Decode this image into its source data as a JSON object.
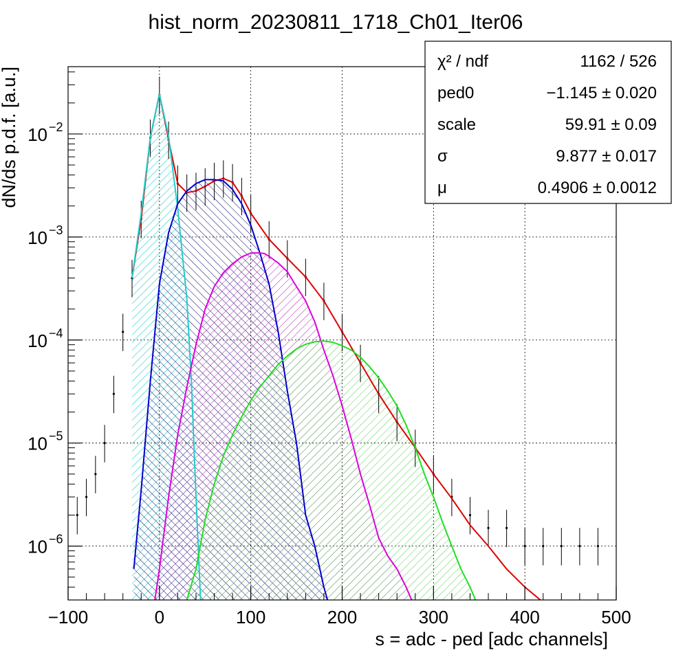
{
  "chart_data": {
    "type": "line",
    "title": "hist_norm_20230811_1718_Ch01_Iter06",
    "xlabel": "s = adc - ped [adc channels]",
    "ylabel": "dN/ds p.d.f. [a.u.]",
    "xlim": [
      -100,
      500
    ],
    "ylim": [
      3e-07,
      0.045
    ],
    "yscale": "log",
    "grid": true,
    "x_ticks": [
      -100,
      0,
      100,
      200,
      300,
      400,
      500
    ],
    "x_tick_labels": [
      "−100",
      "0",
      "100",
      "200",
      "300",
      "400",
      "500"
    ],
    "y_ticks": [
      1e-06,
      1e-05,
      0.0001,
      0.001,
      0.01
    ],
    "y_tick_labels": [
      {
        "base": "10",
        "exp": "−6"
      },
      {
        "base": "10",
        "exp": "−5"
      },
      {
        "base": "10",
        "exp": "−4"
      },
      {
        "base": "10",
        "exp": "−3"
      },
      {
        "base": "10",
        "exp": "−2"
      }
    ],
    "series": [
      {
        "color": "#000000",
        "kind": "data",
        "x": [
          -90,
          -80,
          -70,
          -60,
          -50,
          -40,
          -30,
          -20,
          -10,
          0,
          10,
          20,
          30,
          40,
          50,
          60,
          70,
          80,
          90,
          100,
          120,
          140,
          160,
          180,
          200,
          220,
          240,
          260,
          280,
          300,
          320,
          340,
          360,
          380,
          400,
          420,
          440,
          460,
          480
        ],
        "y": [
          2e-06,
          3e-06,
          5e-06,
          1e-05,
          3e-05,
          0.00012,
          0.0004,
          0.0015,
          0.0092,
          0.024,
          0.0088,
          0.0033,
          0.0027,
          0.0028,
          0.0031,
          0.0035,
          0.0037,
          0.0034,
          0.0025,
          0.0017,
          0.00095,
          0.00062,
          0.00041,
          0.00024,
          0.00012,
          6e-05,
          3e-05,
          1.6e-05,
          9e-06,
          5e-06,
          3e-06,
          2e-06,
          1.5e-06,
          1.5e-06,
          1e-06,
          1e-06,
          1e-06,
          1e-06,
          1e-06
        ]
      },
      {
        "color": "#dd0000",
        "kind": "fit",
        "x": [
          -30,
          -20,
          -10,
          0,
          10,
          20,
          30,
          40,
          50,
          60,
          70,
          80,
          90,
          100,
          120,
          140,
          160,
          180,
          200,
          220,
          240,
          260,
          280,
          300,
          320,
          340,
          360,
          380,
          400,
          417
        ],
        "y": [
          0.0004,
          0.0015,
          0.0092,
          0.0245,
          0.0088,
          0.0033,
          0.0027,
          0.0028,
          0.0031,
          0.0035,
          0.0037,
          0.0034,
          0.0025,
          0.0017,
          0.00095,
          0.00062,
          0.00041,
          0.00024,
          0.00012,
          6e-05,
          3e-05,
          1.6e-05,
          9e-06,
          5e-06,
          2.9e-06,
          1.6e-06,
          1e-06,
          6e-07,
          4e-07,
          3e-07
        ]
      },
      {
        "color": "#22cccc",
        "kind": "component",
        "hatch": "ped",
        "x": [
          -30,
          -20,
          -10,
          0,
          10,
          20,
          30,
          35,
          40,
          45
        ],
        "y": [
          0.0004,
          0.0017,
          0.0093,
          0.0245,
          0.0095,
          0.0019,
          0.00025,
          4e-05,
          3e-06,
          3e-07
        ]
      },
      {
        "color": "#0000cc",
        "kind": "component",
        "hatch": "pe1",
        "x": [
          -28,
          -20,
          -10,
          0,
          10,
          20,
          30,
          40,
          50,
          60,
          70,
          80,
          90,
          100,
          110,
          120,
          130,
          140,
          150,
          160,
          170,
          180,
          184
        ],
        "y": [
          6e-07,
          3.5e-06,
          4e-05,
          0.00035,
          0.0011,
          0.0021,
          0.0028,
          0.0033,
          0.0036,
          0.0036,
          0.0035,
          0.0029,
          0.0021,
          0.0013,
          0.0007,
          0.00035,
          0.00012,
          3.2e-05,
          1e-05,
          2e-06,
          1e-06,
          4e-07,
          3e-07
        ]
      },
      {
        "color": "#dd00dd",
        "kind": "component",
        "hatch": "pe2",
        "x": [
          -5,
          0,
          10,
          20,
          30,
          40,
          50,
          60,
          70,
          80,
          90,
          100,
          110,
          115,
          120,
          130,
          140,
          150,
          160,
          170,
          180,
          190,
          200,
          210,
          220,
          230,
          240,
          250,
          260,
          270,
          276
        ],
        "y": [
          3e-07,
          6e-07,
          3e-06,
          1.2e-05,
          3.5e-05,
          9e-05,
          0.0002,
          0.00033,
          0.00045,
          0.00055,
          0.00064,
          0.0007,
          0.0007,
          0.00069,
          0.00065,
          0.00056,
          0.00046,
          0.00033,
          0.00024,
          0.00015,
          8e-05,
          4.5e-05,
          2.3e-05,
          1.1e-05,
          5e-06,
          2.5e-06,
          1.2e-06,
          8e-07,
          6e-07,
          4e-07,
          3e-07
        ]
      },
      {
        "color": "#22dd22",
        "kind": "component",
        "hatch": "pe3",
        "x": [
          30,
          40,
          50,
          60,
          70,
          80,
          90,
          100,
          110,
          120,
          130,
          140,
          150,
          160,
          170,
          180,
          190,
          200,
          210,
          220,
          230,
          240,
          250,
          260,
          270,
          280,
          290,
          300,
          310,
          320,
          330,
          340,
          346
        ],
        "y": [
          3e-07,
          6e-07,
          1.8e-06,
          4e-06,
          7.5e-06,
          1.2e-05,
          1.8e-05,
          2.6e-05,
          3.5e-05,
          4.5e-05,
          5.8e-05,
          7e-05,
          8.2e-05,
          9.1e-05,
          9.6e-05,
          9.8e-05,
          9.5e-05,
          8.8e-05,
          8e-05,
          6.8e-05,
          5.5e-05,
          4.3e-05,
          3.2e-05,
          2.3e-05,
          1.5e-05,
          9e-06,
          5e-06,
          3e-06,
          1.7e-06,
          1e-06,
          6e-07,
          4e-07,
          3e-07
        ]
      }
    ],
    "stats": [
      {
        "name": "χ² / ndf",
        "value": "1162 / 526"
      },
      {
        "name": "ped0",
        "value": "−1.145 ± 0.020"
      },
      {
        "name": "scale",
        "value": "59.91 ± 0.09"
      },
      {
        "name": "σ",
        "value": "9.877 ± 0.017"
      },
      {
        "name": "μ",
        "value": "0.4906 ± 0.0012"
      }
    ]
  }
}
